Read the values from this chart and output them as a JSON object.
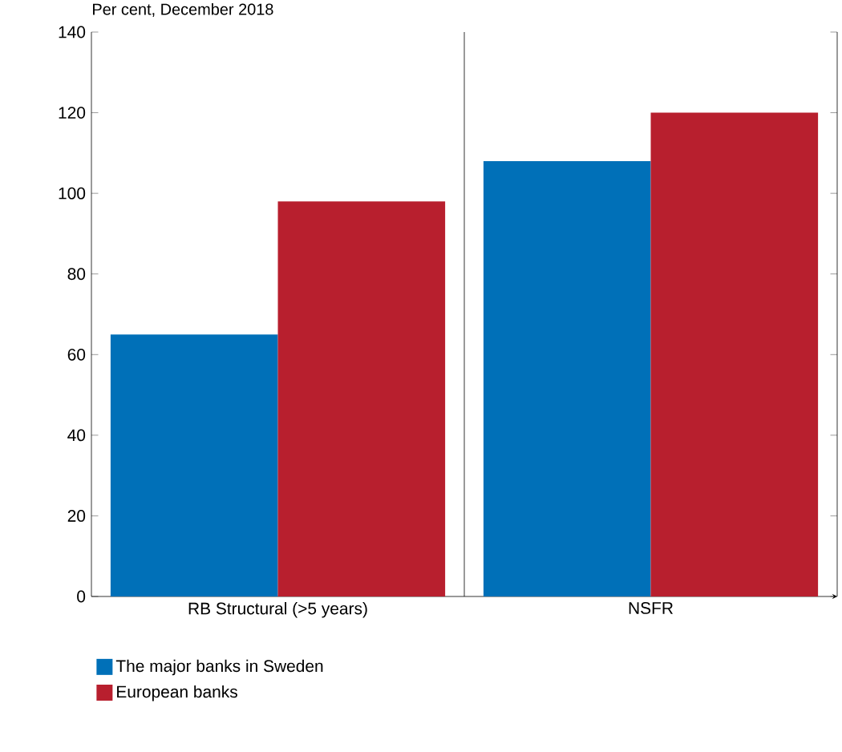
{
  "chart_data": {
    "type": "bar",
    "title": "Per cent, December 2018",
    "categories": [
      "RB Structural (>5 years)",
      "NSFR"
    ],
    "series": [
      {
        "name": "The major banks in Sweden",
        "color": "#0070b8",
        "values": [
          65,
          108
        ]
      },
      {
        "name": "European banks",
        "color": "#b81f2e",
        "values": [
          98,
          120
        ]
      }
    ],
    "ylim": [
      0,
      140
    ],
    "yticks": [
      0,
      20,
      40,
      60,
      80,
      100,
      120,
      140
    ],
    "legend": "bottom"
  }
}
